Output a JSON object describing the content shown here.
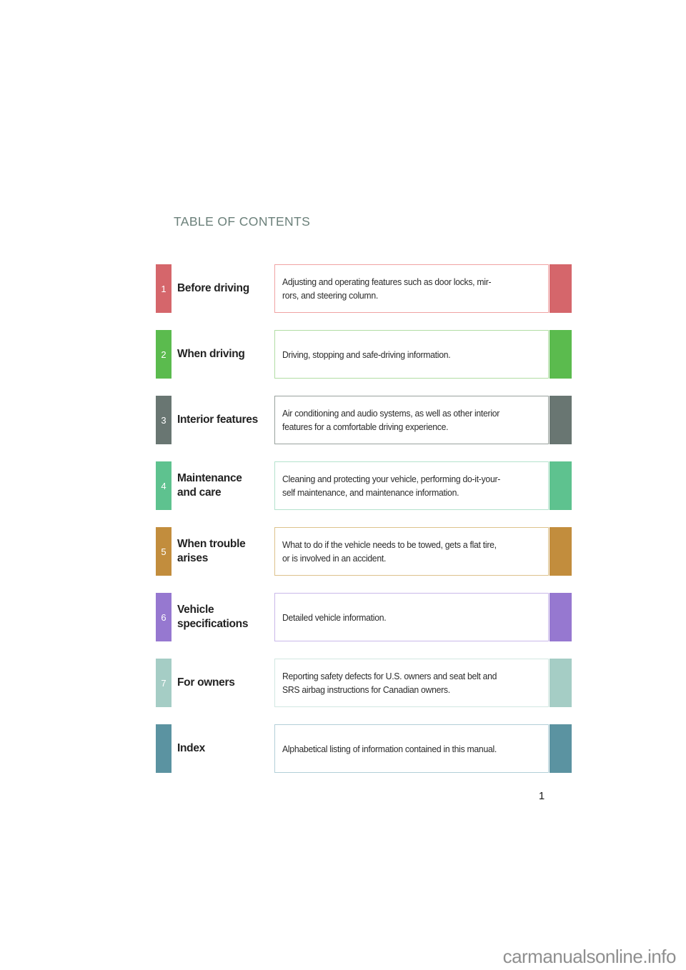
{
  "page": {
    "heading": "TABLE OF CONTENTS",
    "page_number": "1",
    "watermark": "carmanualsonline.info"
  },
  "toc": {
    "rows": [
      {
        "number": "1",
        "color": "#d5666b",
        "border_color": "#f0a3a3",
        "label_lines": [
          "Before driving",
          ""
        ],
        "desc_lines": [
          "Adjusting and operating features such as door locks, mir-",
          "rors, and steering column."
        ]
      },
      {
        "number": "2",
        "color": "#5bbb4e",
        "border_color": "#b1dda4",
        "label_lines": [
          "When driving",
          ""
        ],
        "desc_lines": [
          "Driving, stopping and safe-driving information.",
          ""
        ]
      },
      {
        "number": "3",
        "color": "#697672",
        "border_color": "#99a29d",
        "label_lines": [
          "Interior features",
          ""
        ],
        "desc_lines": [
          "Air conditioning and audio systems, as well as other interior",
          "features for a comfortable driving experience."
        ]
      },
      {
        "number": "4",
        "color": "#5ec28f",
        "border_color": "#b4e2cd",
        "label_lines": [
          "Maintenance",
          "and care"
        ],
        "desc_lines": [
          "Cleaning and protecting your vehicle, performing do-it-your-",
          "self maintenance, and maintenance information."
        ]
      },
      {
        "number": "5",
        "color": "#c28d3d",
        "border_color": "#ddc28c",
        "label_lines": [
          "When trouble",
          "arises"
        ],
        "desc_lines": [
          "What to do if the vehicle needs to be towed, gets a flat tire,",
          "or is involved in an accident."
        ]
      },
      {
        "number": "6",
        "color": "#9678d0",
        "border_color": "#c9b8e9",
        "label_lines": [
          "Vehicle",
          "specifications"
        ],
        "desc_lines": [
          "Detailed vehicle information.",
          ""
        ]
      },
      {
        "number": "7",
        "color": "#a5cdc5",
        "border_color": "#d2e7e2",
        "label_lines": [
          "For owners",
          ""
        ],
        "desc_lines": [
          "Reporting safety defects for U.S. owners and seat belt and",
          "SRS airbag instructions for Canadian owners."
        ]
      },
      {
        "number": "",
        "color": "#5b93a1",
        "border_color": "#b2cfd8",
        "label_lines": [
          "Index",
          ""
        ],
        "desc_lines": [
          "Alphabetical listing of information contained in this manual.",
          ""
        ]
      }
    ]
  }
}
